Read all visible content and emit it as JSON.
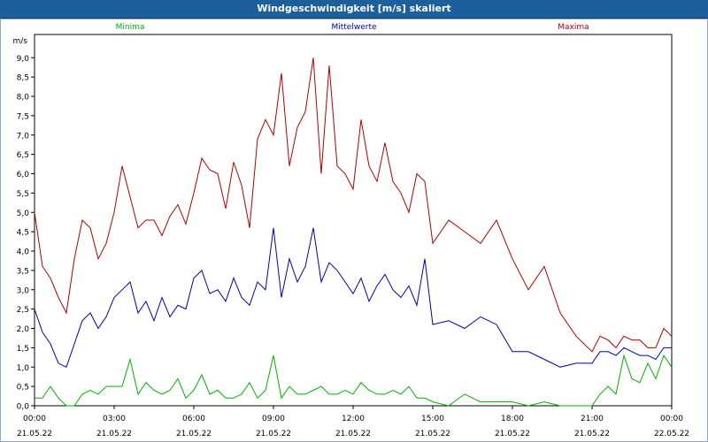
{
  "window": {
    "title": "Windgeschwindigkeit [m/s] skaliert"
  },
  "colors": {
    "min": "#00b000",
    "mean": "#0000b0",
    "max": "#b00000",
    "grid": "#000000",
    "axis": "#000000"
  },
  "chart_data": {
    "type": "line",
    "title": "Windgeschwindigkeit [m/s] skaliert",
    "ylabel": "m/s",
    "ylim": [
      0,
      9.6
    ],
    "y_ticks": [
      "0,0",
      "0,5",
      "1,0",
      "1,5",
      "2,0",
      "2,5",
      "3,0",
      "3,5",
      "4,0",
      "4,5",
      "5,0",
      "5,5",
      "6,0",
      "6,5",
      "7,0",
      "7,5",
      "8,0",
      "8,5",
      "9,0"
    ],
    "x_ticks": [
      {
        "time": "00:00",
        "date": "21.05.22"
      },
      {
        "time": "03:00",
        "date": "21.05.22"
      },
      {
        "time": "06:00",
        "date": "21.05.22"
      },
      {
        "time": "09:00",
        "date": "21.05.22"
      },
      {
        "time": "12:00",
        "date": "21.05.22"
      },
      {
        "time": "15:00",
        "date": "21.05.22"
      },
      {
        "time": "18:00",
        "date": "21.05.22"
      },
      {
        "time": "21:00",
        "date": "21.05.22"
      },
      {
        "time": "00:00",
        "date": "22.05.22"
      }
    ],
    "x_unit": "hours since 21.05.22 00:00",
    "grid": true,
    "legend_position": "top",
    "series": [
      {
        "name": "Minima",
        "color": "#00b000",
        "x": [
          0,
          0.3,
          0.6,
          0.9,
          1.2,
          1.5,
          1.8,
          2.1,
          2.4,
          2.7,
          3,
          3.3,
          3.6,
          3.9,
          4.2,
          4.5,
          4.8,
          5.1,
          5.4,
          5.7,
          6,
          6.3,
          6.6,
          6.9,
          7.2,
          7.5,
          7.8,
          8.1,
          8.4,
          8.7,
          9,
          9.3,
          9.6,
          9.9,
          10.2,
          10.5,
          10.8,
          11.1,
          11.4,
          11.7,
          12,
          12.3,
          12.6,
          12.9,
          13.2,
          13.5,
          13.8,
          14.1,
          14.4,
          14.7,
          15,
          15.6,
          16.2,
          16.8,
          17.4,
          18,
          18.6,
          19.2,
          19.8,
          20.4,
          21,
          21.3,
          21.6,
          21.9,
          22.2,
          22.5,
          22.8,
          23.1,
          23.4,
          23.7,
          24
        ],
        "y": [
          0.2,
          0.2,
          0.5,
          0.2,
          0.0,
          0.0,
          0.3,
          0.4,
          0.3,
          0.5,
          0.5,
          0.5,
          1.2,
          0.3,
          0.6,
          0.4,
          0.3,
          0.4,
          0.7,
          0.2,
          0.4,
          0.8,
          0.3,
          0.4,
          0.2,
          0.2,
          0.3,
          0.6,
          0.2,
          0.4,
          1.3,
          0.2,
          0.5,
          0.3,
          0.3,
          0.4,
          0.5,
          0.3,
          0.3,
          0.4,
          0.3,
          0.6,
          0.4,
          0.3,
          0.3,
          0.4,
          0.3,
          0.5,
          0.2,
          0.2,
          0.1,
          0.0,
          0.3,
          0.1,
          0.1,
          0.1,
          0.0,
          0.1,
          0.0,
          0.0,
          0.0,
          0.3,
          0.5,
          0.3,
          1.3,
          0.7,
          0.6,
          1.1,
          0.7,
          1.3,
          1.0
        ]
      },
      {
        "name": "Mittelwerte",
        "color": "#0000b0",
        "x": [
          0,
          0.3,
          0.6,
          0.9,
          1.2,
          1.5,
          1.8,
          2.1,
          2.4,
          2.7,
          3,
          3.3,
          3.6,
          3.9,
          4.2,
          4.5,
          4.8,
          5.1,
          5.4,
          5.7,
          6,
          6.3,
          6.6,
          6.9,
          7.2,
          7.5,
          7.8,
          8.1,
          8.4,
          8.7,
          9,
          9.3,
          9.6,
          9.9,
          10.2,
          10.5,
          10.8,
          11.1,
          11.4,
          11.7,
          12,
          12.3,
          12.6,
          12.9,
          13.2,
          13.5,
          13.8,
          14.1,
          14.4,
          14.7,
          15,
          15.6,
          16.2,
          16.8,
          17.4,
          18,
          18.6,
          19.2,
          19.8,
          20.4,
          21,
          21.3,
          21.6,
          21.9,
          22.2,
          22.5,
          22.8,
          23.1,
          23.4,
          23.7,
          24
        ],
        "y": [
          2.5,
          1.9,
          1.6,
          1.1,
          1.0,
          1.6,
          2.2,
          2.4,
          2.0,
          2.3,
          2.8,
          3.0,
          3.2,
          2.4,
          2.7,
          2.2,
          2.8,
          2.3,
          2.6,
          2.5,
          3.3,
          3.5,
          2.9,
          3.0,
          2.7,
          3.3,
          2.8,
          2.6,
          3.2,
          3.0,
          4.6,
          2.8,
          3.8,
          3.2,
          3.6,
          4.6,
          3.2,
          3.7,
          3.5,
          3.2,
          2.9,
          3.3,
          2.7,
          3.1,
          3.4,
          3.0,
          2.8,
          3.1,
          2.6,
          3.8,
          2.1,
          2.2,
          2.0,
          2.3,
          2.1,
          1.4,
          1.4,
          1.2,
          1.0,
          1.1,
          1.1,
          1.4,
          1.4,
          1.3,
          1.5,
          1.4,
          1.3,
          1.3,
          1.2,
          1.5,
          1.5
        ]
      },
      {
        "name": "Maxima",
        "color": "#b00000",
        "x": [
          0,
          0.3,
          0.6,
          0.9,
          1.2,
          1.5,
          1.8,
          2.1,
          2.4,
          2.7,
          3,
          3.3,
          3.6,
          3.9,
          4.2,
          4.5,
          4.8,
          5.1,
          5.4,
          5.7,
          6,
          6.3,
          6.6,
          6.9,
          7.2,
          7.5,
          7.8,
          8.1,
          8.4,
          8.7,
          9,
          9.3,
          9.6,
          9.9,
          10.2,
          10.5,
          10.8,
          11.1,
          11.4,
          11.7,
          12,
          12.3,
          12.6,
          12.9,
          13.2,
          13.5,
          13.8,
          14.1,
          14.4,
          14.7,
          15,
          15.6,
          16.2,
          16.8,
          17.4,
          18,
          18.6,
          19.2,
          19.8,
          20.4,
          21,
          21.3,
          21.6,
          21.9,
          22.2,
          22.5,
          22.8,
          23.1,
          23.4,
          23.7,
          24
        ],
        "y": [
          5.0,
          3.6,
          3.3,
          2.8,
          2.4,
          3.8,
          4.8,
          4.6,
          3.8,
          4.2,
          5.0,
          6.2,
          5.4,
          4.6,
          4.8,
          4.8,
          4.4,
          4.9,
          5.2,
          4.7,
          5.5,
          6.4,
          6.1,
          6.0,
          5.1,
          6.3,
          5.7,
          4.6,
          6.9,
          7.4,
          7.0,
          8.6,
          6.2,
          7.2,
          7.6,
          9.0,
          6.0,
          8.8,
          6.2,
          6.0,
          5.6,
          7.4,
          6.2,
          5.8,
          6.8,
          5.8,
          5.5,
          5.0,
          6.0,
          5.8,
          4.2,
          4.8,
          4.5,
          4.2,
          4.8,
          3.8,
          3.0,
          3.6,
          2.4,
          1.8,
          1.4,
          1.8,
          1.7,
          1.5,
          1.8,
          1.7,
          1.7,
          1.5,
          1.5,
          2.0,
          1.8
        ]
      }
    ]
  }
}
